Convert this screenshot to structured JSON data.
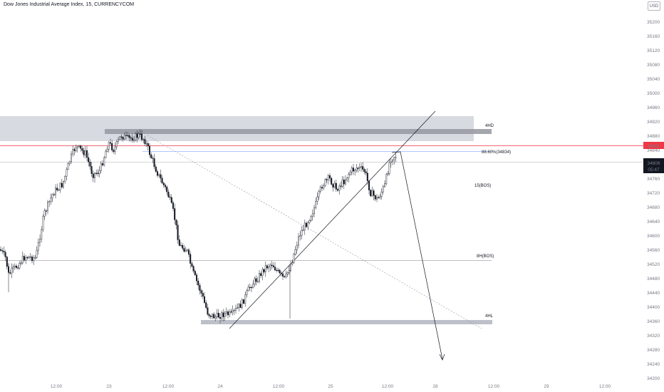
{
  "chart": {
    "title": "Dow Jones Industrial Average Index, 15, CURRENCYCOM",
    "currency": "USD",
    "colors": {
      "up": "#131722",
      "down": "#131722",
      "background": "#ffffff",
      "zone": "#d1d4dc",
      "fib": "#2962ff",
      "red_line": "#f23645",
      "price_badge": "#131722"
    },
    "price_axis": {
      "ticks": [
        "35200",
        "35160",
        "35120",
        "35080",
        "35040",
        "35000",
        "34960",
        "34920",
        "34880",
        "34840",
        "34800",
        "34760",
        "34720",
        "34680",
        "34640",
        "34600",
        "34560",
        "34520",
        "34480",
        "34440",
        "34400",
        "34360",
        "34320",
        "34280",
        "34240",
        "34200"
      ],
      "badge_red": "34851",
      "badge_dark_price": "34806",
      "badge_dark_time": "05:47"
    },
    "time_axis": {
      "ticks": [
        "12:00",
        "23",
        "12:00",
        "24",
        "12:00",
        "25",
        "12:00",
        "28",
        "12:00",
        "29",
        "12:00"
      ]
    },
    "annotations": {
      "zone_4hd": "4HD",
      "fib_label": "88.60%(34834)",
      "bos_15": "15(BOS)",
      "bos_8h": "8H(BOS)",
      "hl_4": "4HL"
    }
  }
}
